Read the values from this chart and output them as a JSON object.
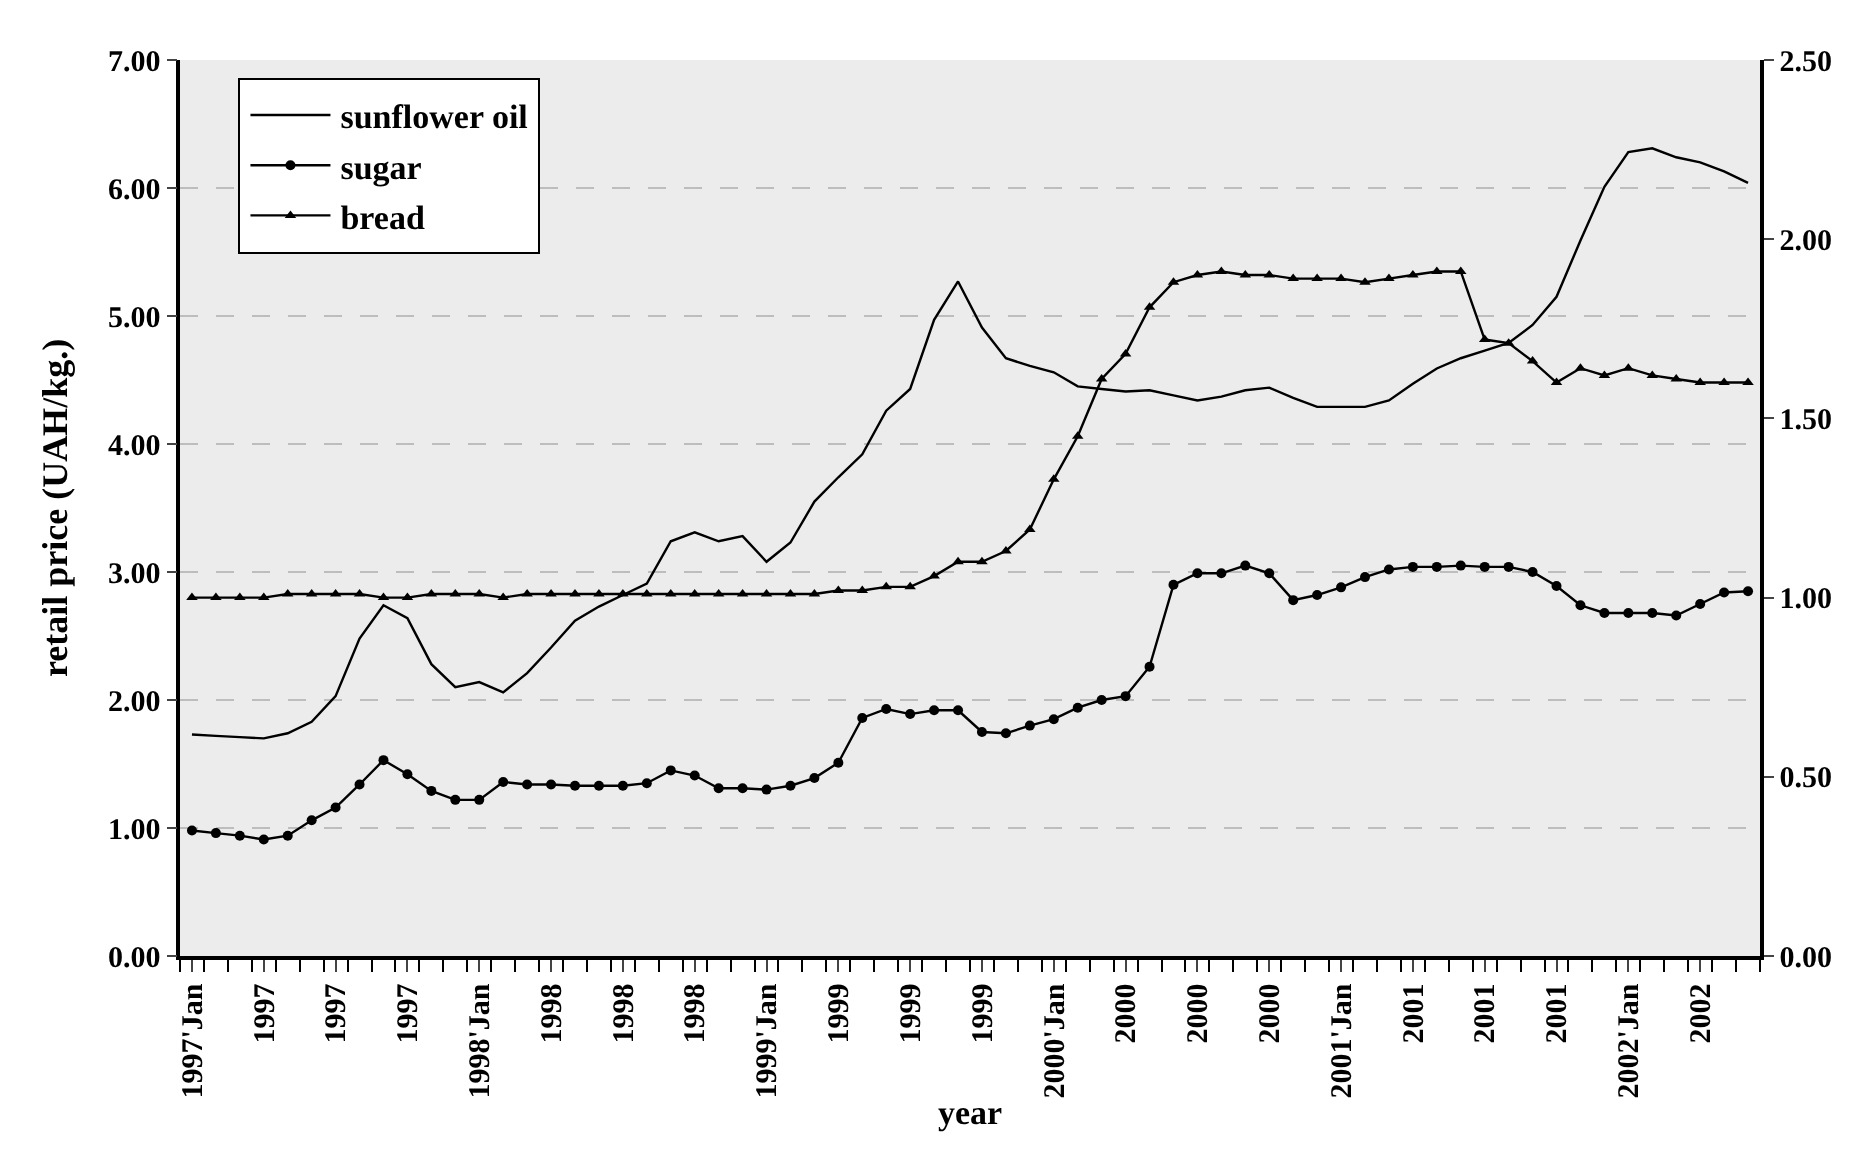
{
  "chart_data": {
    "type": "line",
    "xlabel": "year",
    "ylabel": "retail price (UAH/kg.)",
    "categories": [
      "1997'Jan",
      null,
      null,
      "1997",
      null,
      null,
      "1997",
      null,
      null,
      "1997",
      null,
      null,
      "1998'Jan",
      null,
      null,
      "1998",
      null,
      null,
      "1998",
      null,
      null,
      "1998",
      null,
      null,
      "1999'Jan",
      null,
      null,
      "1999",
      null,
      null,
      "1999",
      null,
      null,
      "1999",
      null,
      null,
      "2000'Jan",
      null,
      null,
      "2000",
      null,
      null,
      "2000",
      null,
      null,
      "2000",
      null,
      null,
      "2001'Jan",
      null,
      null,
      "2001",
      null,
      null,
      "2001",
      null,
      null,
      "2001",
      null,
      null,
      "2002'Jan",
      null,
      null,
      "2002",
      null,
      null
    ],
    "series": [
      {
        "name": "sunflower oil",
        "color": "#000000",
        "marker": "none",
        "values": [
          1.73,
          1.72,
          1.71,
          1.7,
          1.74,
          1.83,
          2.03,
          2.48,
          2.74,
          2.64,
          2.28,
          2.1,
          2.14,
          2.06,
          2.21,
          2.41,
          2.62,
          2.73,
          2.82,
          2.91,
          3.24,
          3.31,
          3.24,
          3.28,
          3.08,
          3.23,
          3.55,
          3.74,
          3.92,
          4.26,
          4.43,
          4.97,
          5.27,
          4.91,
          4.67,
          4.61,
          4.56,
          4.45,
          4.43,
          4.41,
          4.42,
          4.38,
          4.34,
          4.37,
          4.42,
          4.44,
          4.36,
          4.29,
          4.29,
          4.29,
          4.34,
          4.47,
          4.59,
          4.67,
          4.73,
          4.79,
          4.93,
          5.15,
          5.59,
          6.01,
          6.28,
          6.31,
          6.24,
          6.2,
          6.13,
          6.04
        ]
      },
      {
        "name": "sugar",
        "color": "#000000",
        "marker": "circle",
        "values": [
          0.98,
          0.96,
          0.94,
          0.91,
          0.94,
          1.06,
          1.16,
          1.34,
          1.53,
          1.42,
          1.29,
          1.22,
          1.22,
          1.36,
          1.34,
          1.34,
          1.33,
          1.33,
          1.33,
          1.35,
          1.45,
          1.41,
          1.31,
          1.31,
          1.3,
          1.33,
          1.39,
          1.51,
          1.86,
          1.93,
          1.89,
          1.92,
          1.92,
          1.75,
          1.74,
          1.8,
          1.85,
          1.94,
          2.0,
          2.03,
          2.26,
          2.9,
          2.99,
          2.99,
          3.05,
          2.99,
          2.78,
          2.82,
          2.88,
          2.96,
          3.02,
          3.04,
          3.04,
          3.05,
          3.04,
          3.04,
          3.0,
          2.89,
          2.74,
          2.68,
          2.68,
          2.68,
          2.66,
          2.75,
          2.84,
          2.85
        ]
      },
      {
        "name": "bread",
        "color": "#000000",
        "marker": "triangle",
        "axis": "y2",
        "values": [
          1.0,
          1.0,
          1.0,
          1.0,
          1.01,
          1.01,
          1.01,
          1.01,
          1.0,
          1.0,
          1.01,
          1.01,
          1.01,
          1.0,
          1.01,
          1.01,
          1.01,
          1.01,
          1.01,
          1.01,
          1.01,
          1.01,
          1.01,
          1.01,
          1.01,
          1.01,
          1.01,
          1.02,
          1.02,
          1.03,
          1.03,
          1.06,
          1.1,
          1.1,
          1.13,
          1.19,
          1.33,
          1.45,
          1.61,
          1.68,
          1.81,
          1.88,
          1.9,
          1.91,
          1.9,
          1.9,
          1.89,
          1.89,
          1.89,
          1.88,
          1.89,
          1.9,
          1.91,
          1.91,
          1.72,
          1.71,
          1.66,
          1.6,
          1.64,
          1.62,
          1.64,
          1.62,
          1.61,
          1.6,
          1.6,
          1.6
        ]
      }
    ],
    "ylim": [
      0,
      7
    ],
    "yticks": [
      {
        "value": 0,
        "label": "0.00"
      },
      {
        "value": 1,
        "label": "1.00"
      },
      {
        "value": 2,
        "label": "2.00"
      },
      {
        "value": 3,
        "label": "3.00"
      },
      {
        "value": 4,
        "label": "4.00"
      },
      {
        "value": 5,
        "label": "5.00"
      },
      {
        "value": 6,
        "label": "6.00"
      },
      {
        "value": 7,
        "label": "7.00"
      }
    ],
    "y2lim": [
      0,
      2.5
    ],
    "y2ticks": [
      {
        "value": 0,
        "label": "0.00"
      },
      {
        "value": 0.5,
        "label": "0.50"
      },
      {
        "value": 1,
        "label": "1.00"
      },
      {
        "value": 1.5,
        "label": "1.50"
      },
      {
        "value": 2,
        "label": "2.00"
      },
      {
        "value": 2.5,
        "label": "2.50"
      }
    ],
    "grid": "y",
    "legend": "top left",
    "line_style": "solid"
  }
}
